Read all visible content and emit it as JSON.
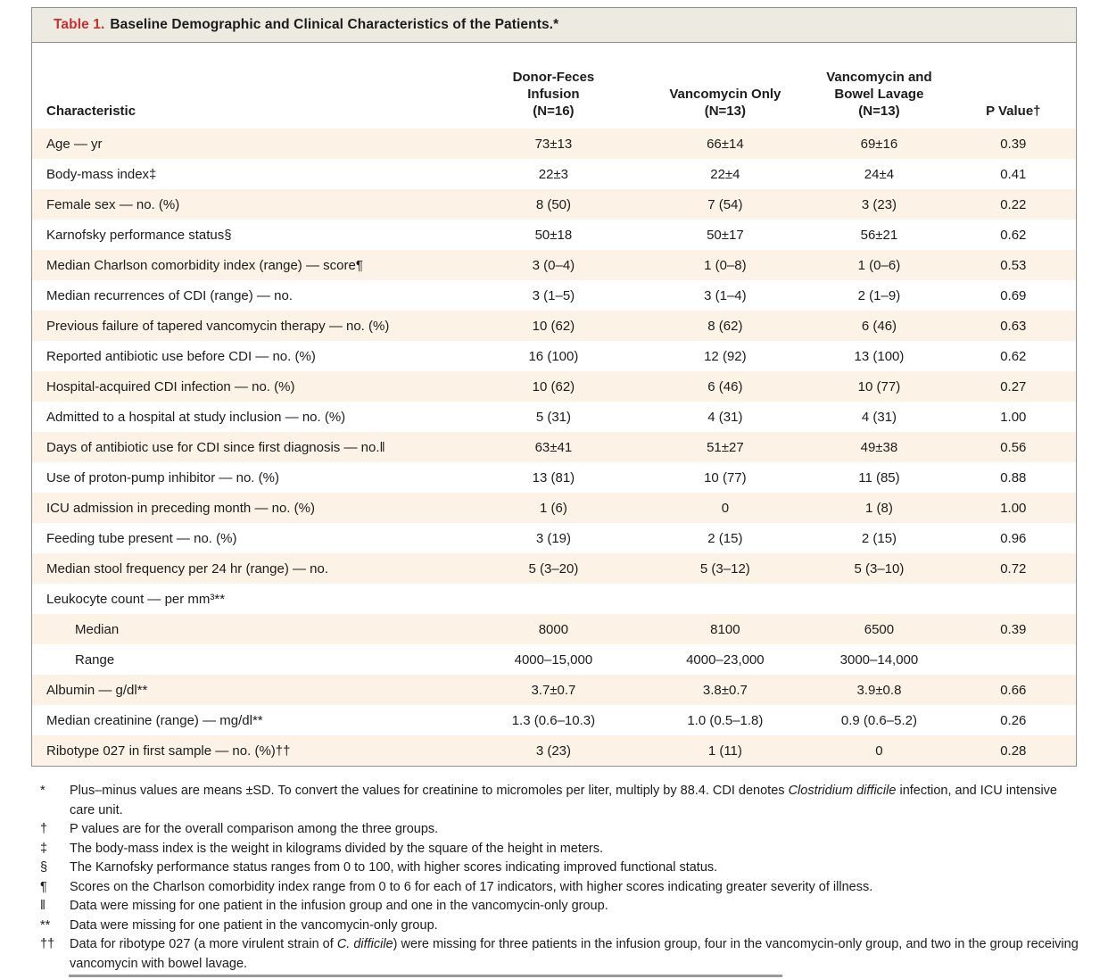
{
  "title": {
    "label": "Table 1.",
    "text": "Baseline Demographic and Clinical Characteristics of the Patients.*"
  },
  "colors": {
    "accent_red": "#c9302f",
    "title_band_bg": "#edeae1",
    "row_shade": "#fcf3e6",
    "frame_border": "#8f8f8f",
    "text": "#1c1c1c"
  },
  "table": {
    "columns": [
      "Characteristic",
      "Donor-Feces\nInfusion\n(N=16)",
      "Vancomycin Only\n(N=13)",
      "Vancomycin and\nBowel Lavage\n(N=13)",
      "P Value†"
    ],
    "rows": [
      {
        "label": "Age — yr",
        "indent": false,
        "values": [
          "73±13",
          "66±14",
          "69±16",
          "0.39"
        ]
      },
      {
        "label": "Body-mass index‡",
        "indent": false,
        "values": [
          "22±3",
          "22±4",
          "24±4",
          "0.41"
        ]
      },
      {
        "label": "Female sex — no. (%)",
        "indent": false,
        "values": [
          "8 (50)",
          "7 (54)",
          "3 (23)",
          "0.22"
        ]
      },
      {
        "label": "Karnofsky performance status§",
        "indent": false,
        "values": [
          "50±18",
          "50±17",
          "56±21",
          "0.62"
        ]
      },
      {
        "label": "Median Charlson comorbidity index (range) — score¶",
        "indent": false,
        "values": [
          "3 (0–4)",
          "1 (0–8)",
          "1 (0–6)",
          "0.53"
        ]
      },
      {
        "label": "Median recurrences of CDI (range) — no.",
        "indent": false,
        "values": [
          "3 (1–5)",
          "3 (1–4)",
          "2 (1–9)",
          "0.69"
        ]
      },
      {
        "label": "Previous failure of tapered vancomycin therapy — no. (%)",
        "indent": false,
        "values": [
          "10 (62)",
          "8 (62)",
          "6 (46)",
          "0.63"
        ]
      },
      {
        "label": "Reported antibiotic use before CDI — no. (%)",
        "indent": false,
        "values": [
          "16 (100)",
          "12 (92)",
          "13 (100)",
          "0.62"
        ]
      },
      {
        "label": "Hospital-acquired CDI infection — no. (%)",
        "indent": false,
        "values": [
          "10 (62)",
          "6 (46)",
          "10 (77)",
          "0.27"
        ]
      },
      {
        "label": "Admitted to a hospital at study inclusion — no. (%)",
        "indent": false,
        "values": [
          "5 (31)",
          "4 (31)",
          "4 (31)",
          "1.00"
        ]
      },
      {
        "label": "Days of antibiotic use for CDI since first diagnosis — no.‖",
        "indent": false,
        "values": [
          "63±41",
          "51±27",
          "49±38",
          "0.56"
        ]
      },
      {
        "label": "Use of proton-pump inhibitor — no. (%)",
        "indent": false,
        "values": [
          "13 (81)",
          "10 (77)",
          "11 (85)",
          "0.88"
        ]
      },
      {
        "label": "ICU admission in preceding month — no. (%)",
        "indent": false,
        "values": [
          "1 (6)",
          "0",
          "1 (8)",
          "1.00"
        ]
      },
      {
        "label": "Feeding tube present — no. (%)",
        "indent": false,
        "values": [
          "3 (19)",
          "2 (15)",
          "2 (15)",
          "0.96"
        ]
      },
      {
        "label": "Median stool frequency per 24 hr (range) — no.",
        "indent": false,
        "values": [
          "5 (3–20)",
          "5 (3–12)",
          "5 (3–10)",
          "0.72"
        ]
      },
      {
        "label": "Leukocyte count — per mm³**",
        "indent": false,
        "values": [
          "",
          "",
          "",
          ""
        ]
      },
      {
        "label": "Median",
        "indent": true,
        "values": [
          "8000",
          "8100",
          "6500",
          "0.39"
        ]
      },
      {
        "label": "Range",
        "indent": true,
        "values": [
          "4000–15,000",
          "4000–23,000",
          "3000–14,000",
          ""
        ]
      },
      {
        "label": "Albumin — g/dl**",
        "indent": false,
        "values": [
          "3.7±0.7",
          "3.8±0.7",
          "3.9±0.8",
          "0.66"
        ]
      },
      {
        "label": "Median creatinine (range) — mg/dl**",
        "indent": false,
        "values": [
          "1.3 (0.6–10.3)",
          "1.0 (0.5–1.8)",
          "0.9 (0.6–5.2)",
          "0.26"
        ]
      },
      {
        "label": "Ribotype 027 in first sample — no. (%)††",
        "indent": false,
        "values": [
          "3 (23)",
          "1 (11)",
          "0",
          "0.28"
        ]
      }
    ]
  },
  "footnotes": [
    {
      "marker": "*",
      "parts": [
        {
          "t": "Plus–minus values are means ±SD. To convert the values for creatinine to micromoles per liter, multiply by 88.4. CDI denotes "
        },
        {
          "t": "Clostridium difficile",
          "i": true
        },
        {
          "t": " infection, and ICU intensive care unit."
        }
      ]
    },
    {
      "marker": "†",
      "parts": [
        {
          "t": "P values are for the overall comparison among the three groups."
        }
      ]
    },
    {
      "marker": "‡",
      "parts": [
        {
          "t": "The body-mass index is the weight in kilograms divided by the square of the height in meters."
        }
      ]
    },
    {
      "marker": "§",
      "parts": [
        {
          "t": "The Karnofsky performance status ranges from 0 to 100, with higher scores indicating improved functional status."
        }
      ]
    },
    {
      "marker": "¶",
      "parts": [
        {
          "t": "Scores on the Charlson comorbidity index range from 0 to 6 for each of 17 indicators, with higher scores indicating greater severity of illness."
        }
      ]
    },
    {
      "marker": "‖",
      "parts": [
        {
          "t": "Data were missing for one patient in the infusion group and one in the vancomycin-only group."
        }
      ]
    },
    {
      "marker": "**",
      "parts": [
        {
          "t": "Data were missing for one patient in the vancomycin-only group."
        }
      ]
    },
    {
      "marker": "††",
      "parts": [
        {
          "t": "Data for ribotype 027 (a more virulent strain of "
        },
        {
          "t": "C. difficile",
          "i": true
        },
        {
          "t": ") were missing for three patients in the infusion group, four in the vancomycin-only group, and two in the group receiving vancomycin with bowel lavage."
        }
      ]
    }
  ]
}
